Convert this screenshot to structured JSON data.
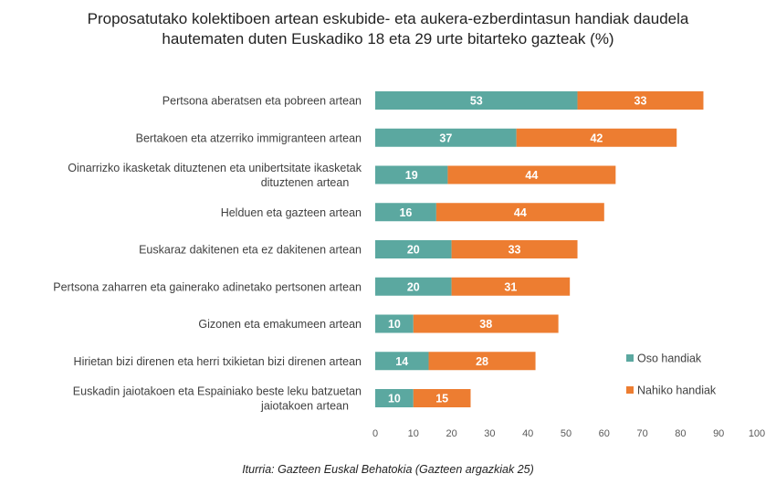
{
  "chart_data": {
    "type": "bar",
    "orientation": "horizontal",
    "stacked": true,
    "title": "Proposatutako kolektiboen artean eskubide- eta aukera-ezberdintasun handiak daudela hautematen duten Euskadiko 18 eta 29 urte bitarteko gazteak (%)",
    "categories": [
      [
        "Pertsona aberatsen eta pobreen artean"
      ],
      [
        "Bertakoen eta atzerriko immigranteen artean"
      ],
      [
        "Oinarrizko ikasketak dituztenen eta unibertsitate ikasketak",
        "dituztenen artean"
      ],
      [
        "Helduen eta gazteen artean"
      ],
      [
        "Euskaraz dakitenen eta ez dakitenen artean"
      ],
      [
        "Pertsona zaharren eta gainerako adinetako pertsonen artean"
      ],
      [
        "Gizonen eta emakumeen artean"
      ],
      [
        "Hirietan bizi direnen eta herri txikietan bizi direnen artean"
      ],
      [
        "Euskadin jaiotakoen eta Espainiako beste leku batzuetan",
        "jaiotakoen artean"
      ]
    ],
    "series": [
      {
        "name": "Oso handiak",
        "color": "#5BA8A0",
        "values": [
          53,
          37,
          19,
          16,
          20,
          20,
          10,
          14,
          10
        ]
      },
      {
        "name": "Nahiko handiak",
        "color": "#ED7D31",
        "values": [
          33,
          42,
          44,
          44,
          33,
          31,
          38,
          28,
          15
        ]
      }
    ],
    "xlim": [
      0,
      100
    ],
    "xticks": [
      0,
      10,
      20,
      30,
      40,
      50,
      60,
      70,
      80,
      90,
      100
    ],
    "grid": false,
    "legend_position": "right"
  },
  "source": "Iturria: Gazteen Euskal Behatokia (Gazteen argazkiak 25)"
}
